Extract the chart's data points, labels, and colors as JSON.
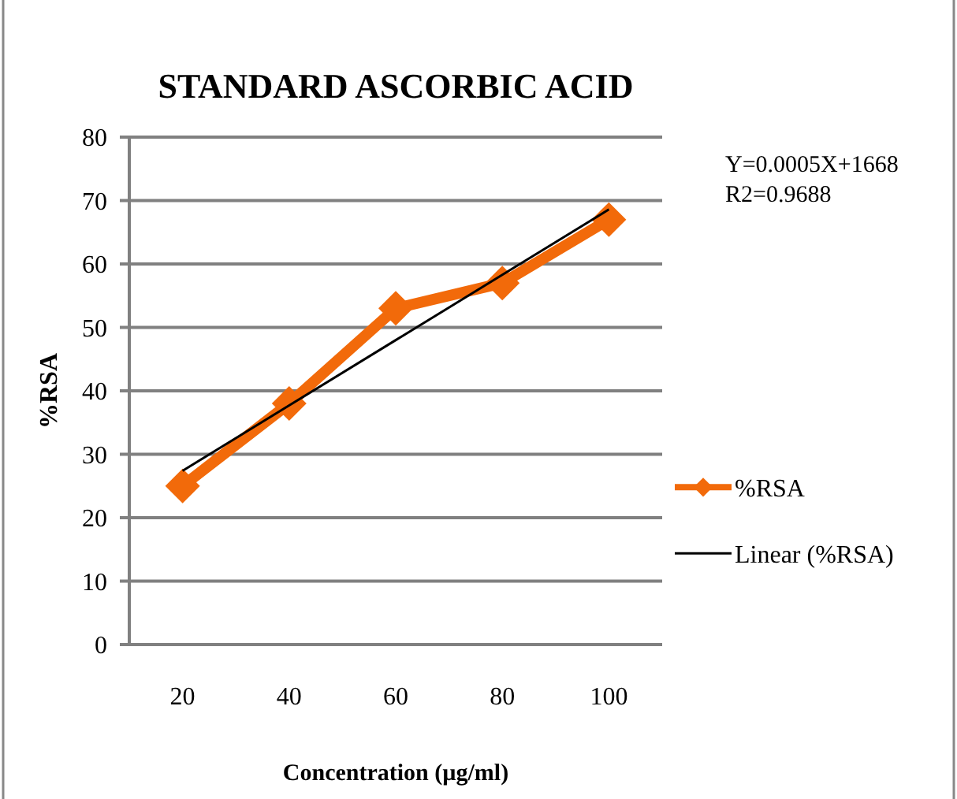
{
  "chart_data": {
    "type": "line",
    "title": "STANDARD ASCORBIC ACID",
    "xlabel": "Concentration (µg/ml)",
    "ylabel": "%RSA",
    "categories": [
      "20",
      "40",
      "60",
      "80",
      "100"
    ],
    "series": [
      {
        "name": "%RSA",
        "color": "#f26a0a",
        "values": [
          25,
          38,
          53,
          57,
          67
        ],
        "marker": "diamond"
      },
      {
        "name": "Linear (%RSA)",
        "color": "#000000",
        "values": [
          27.4,
          37.7,
          48,
          58.3,
          68.6
        ],
        "marker": "none"
      }
    ],
    "ylim": [
      0,
      80
    ],
    "yticks": [
      0,
      10,
      20,
      30,
      40,
      50,
      60,
      70,
      80
    ],
    "grid": "y",
    "legend": "right",
    "annotations": [
      "Y=0.0005X+1668",
      "R2=0.9688"
    ]
  }
}
